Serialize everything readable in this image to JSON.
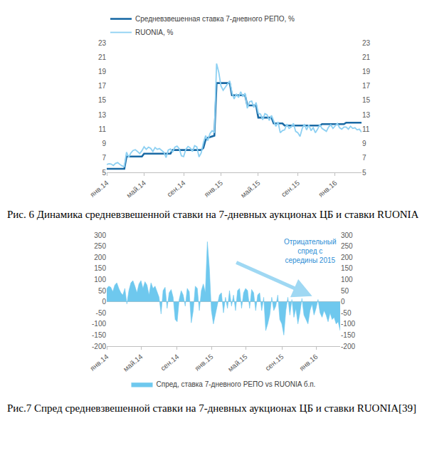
{
  "chart_data": [
    {
      "type": "line",
      "title": "Рис. 6 Динамика средневзвешенной ставки на 7-дневных аукционах ЦБ и ставки RUONIA",
      "categories": [
        "янв.14",
        null,
        null,
        null,
        null,
        null,
        null,
        null,
        null,
        null,
        null,
        null,
        null,
        null,
        null,
        null,
        null,
        "май.14",
        null,
        null,
        null,
        null,
        null,
        null,
        null,
        null,
        null,
        null,
        null,
        null,
        null,
        null,
        null,
        null,
        null,
        "сен.14",
        null,
        null,
        null,
        null,
        null,
        null,
        null,
        null,
        null,
        null,
        null,
        null,
        null,
        null,
        null,
        null,
        "янв.15",
        null,
        null,
        null,
        null,
        null,
        null,
        null,
        null,
        null,
        null,
        null,
        null,
        null,
        null,
        null,
        null,
        "май.15",
        null,
        null,
        null,
        null,
        null,
        null,
        null,
        null,
        null,
        null,
        null,
        null,
        null,
        null,
        null,
        null,
        null,
        "сен.15",
        null,
        null,
        null,
        null,
        null,
        null,
        null,
        null,
        null,
        null,
        null,
        null,
        null,
        null,
        null,
        null,
        "янв.16",
        null,
        null,
        null,
        null,
        null,
        null,
        null,
        null,
        null,
        null,
        null,
        null
      ],
      "series": [
        {
          "name": "Средневзвешенная ставка 7-дневного РЕПО, %",
          "color": "#1a6aa5",
          "values": [
            5.5,
            5.5,
            5.5,
            5.5,
            5.5,
            5.5,
            5.5,
            5.5,
            5.5,
            7.2,
            7.2,
            7.2,
            7.2,
            7.2,
            7.2,
            7.2,
            7.2,
            7.6,
            7.6,
            7.6,
            7.6,
            7.6,
            7.6,
            7.6,
            7.6,
            7.6,
            7.6,
            7.6,
            7.6,
            7.6,
            8.1,
            8.1,
            8.1,
            8.1,
            8.1,
            8.1,
            8.1,
            8.1,
            8.1,
            8.1,
            8.1,
            8.1,
            8.1,
            8.1,
            8.4,
            9.5,
            9.8,
            9.9,
            10.0,
            10.1,
            17.4,
            17.4,
            17.4,
            17.4,
            17.4,
            17.4,
            17.4,
            15.7,
            15.7,
            15.7,
            15.7,
            15.7,
            15.7,
            15.7,
            14.3,
            14.3,
            14.3,
            14.3,
            14.3,
            12.6,
            12.6,
            12.6,
            12.6,
            12.6,
            12.6,
            12.6,
            11.8,
            11.8,
            11.8,
            11.8,
            11.8,
            11.5,
            11.5,
            11.5,
            11.5,
            11.5,
            11.5,
            11.5,
            11.5,
            11.5,
            11.5,
            11.5,
            11.5,
            11.5,
            11.5,
            11.5,
            11.5,
            11.5,
            11.7,
            11.7,
            11.7,
            11.7,
            11.7,
            11.7,
            11.7,
            11.7,
            11.7,
            11.7,
            11.7,
            11.9,
            11.9,
            11.9,
            11.9,
            11.9,
            11.9,
            11.9,
            11.9
          ]
        },
        {
          "name": "RUONIA, %",
          "color": "#8dd0f2",
          "values": [
            6.1,
            6.2,
            6.15,
            5.95,
            6.25,
            6.35,
            6.1,
            5.9,
            5.8,
            7.8,
            7.1,
            7.7,
            8.05,
            8.15,
            7.9,
            7.6,
            8.0,
            8.55,
            8.2,
            8.5,
            8.35,
            7.9,
            8.45,
            8.2,
            8.3,
            8.05,
            7.8,
            7.05,
            8.1,
            8.25,
            7.8,
            8.5,
            8.65,
            8.3,
            7.3,
            7.2,
            8.2,
            8.6,
            8.4,
            7.9,
            8.7,
            8.55,
            7.15,
            7.7,
            9.1,
            10.1,
            9.4,
            10.4,
            10.8,
            10.5,
            20.1,
            18.9,
            17.0,
            16.4,
            16.8,
            17.2,
            17.7,
            16.1,
            15.2,
            15.9,
            15.4,
            16.2,
            15.5,
            16.0,
            13.9,
            14.8,
            14.9,
            14.0,
            14.7,
            13.2,
            13.1,
            12.3,
            13.15,
            13.0,
            12.2,
            12.9,
            12.2,
            11.4,
            12.0,
            10.5,
            10.8,
            10.9,
            11.7,
            11.1,
            11.3,
            11.8,
            10.7,
            10.5,
            10.0,
            11.1,
            11.7,
            10.9,
            11.6,
            10.8,
            11.2,
            10.5,
            11.0,
            11.65,
            11.1,
            10.9,
            10.7,
            11.3,
            11.6,
            11.1,
            11.4,
            11.8,
            11.2,
            11.0,
            11.3,
            11.3,
            11.0,
            11.4,
            11.1,
            11.2,
            10.9,
            11.0,
            10.6
          ]
        }
      ],
      "ylim": [
        5,
        23
      ],
      "yticks": [
        5,
        7,
        9,
        11,
        13,
        15,
        17,
        19,
        21,
        23
      ],
      "y2lim": [
        5,
        23
      ],
      "y2ticks": [
        5,
        7,
        9,
        11,
        13,
        15,
        17,
        19,
        21,
        23
      ],
      "grid": false,
      "legend": "upper left"
    },
    {
      "type": "area",
      "title": "Рис.7 Спред средневзвешенной ставки на 7-дневных аукционах ЦБ и ставки RUONIA[39]",
      "categories": [
        "янв.14",
        null,
        null,
        null,
        null,
        null,
        null,
        null,
        null,
        null,
        null,
        null,
        null,
        null,
        null,
        null,
        null,
        "май.14",
        null,
        null,
        null,
        null,
        null,
        null,
        null,
        null,
        null,
        null,
        null,
        null,
        null,
        null,
        null,
        null,
        null,
        "сен.14",
        null,
        null,
        null,
        null,
        null,
        null,
        null,
        null,
        null,
        null,
        null,
        null,
        null,
        null,
        null,
        null,
        "янв.15",
        null,
        null,
        null,
        null,
        null,
        null,
        null,
        null,
        null,
        null,
        null,
        null,
        null,
        null,
        null,
        null,
        "май.15",
        null,
        null,
        null,
        null,
        null,
        null,
        null,
        null,
        null,
        null,
        null,
        null,
        null,
        null,
        null,
        null,
        null,
        "сен.15",
        null,
        null,
        null,
        null,
        null,
        null,
        null,
        null,
        null,
        null,
        null,
        null,
        null,
        null,
        null,
        null,
        "янв.16",
        null,
        null,
        null,
        null,
        null,
        null,
        null,
        null,
        null,
        null,
        null,
        null
      ],
      "series": [
        {
          "name": "Спред, ставка 7-дневного РЕПО vs RUONIA б.п.",
          "color": "#6ec8ee",
          "values": [
            60,
            70,
            65,
            45,
            75,
            85,
            60,
            40,
            30,
            60,
            -10,
            50,
            85,
            95,
            70,
            40,
            80,
            95,
            60,
            90,
            75,
            30,
            85,
            60,
            70,
            45,
            20,
            -55,
            50,
            65,
            -30,
            40,
            55,
            20,
            -80,
            -90,
            10,
            50,
            30,
            -20,
            60,
            45,
            -95,
            -40,
            70,
            60,
            -40,
            50,
            80,
            40,
            270,
            150,
            -40,
            -100,
            -60,
            -20,
            30,
            40,
            -50,
            20,
            -30,
            50,
            -20,
            30,
            -40,
            50,
            60,
            -30,
            40,
            60,
            50,
            -30,
            55,
            40,
            -40,
            30,
            40,
            -40,
            20,
            -130,
            -100,
            -60,
            20,
            -40,
            -20,
            30,
            -80,
            -100,
            -150,
            -40,
            20,
            -60,
            10,
            -70,
            -30,
            -100,
            -50,
            15,
            -60,
            -80,
            -100,
            -40,
            -10,
            -60,
            -30,
            10,
            -50,
            -70,
            -40,
            -60,
            -90,
            -50,
            -80,
            -70,
            -100,
            -90,
            -130
          ]
        }
      ],
      "ylim": [
        -200,
        300
      ],
      "yticks": [
        -200,
        -150,
        -100,
        -50,
        0,
        50,
        100,
        150,
        200,
        250,
        300
      ],
      "y2lim": [
        -200,
        300
      ],
      "y2ticks": [
        -200,
        -150,
        -100,
        -50,
        0,
        50,
        100,
        150,
        200,
        250,
        300
      ],
      "grid": false,
      "legend": "lower center",
      "annotations": [
        {
          "text": "Отрицательный\nспред с\nсередины 2015"
        }
      ]
    }
  ]
}
